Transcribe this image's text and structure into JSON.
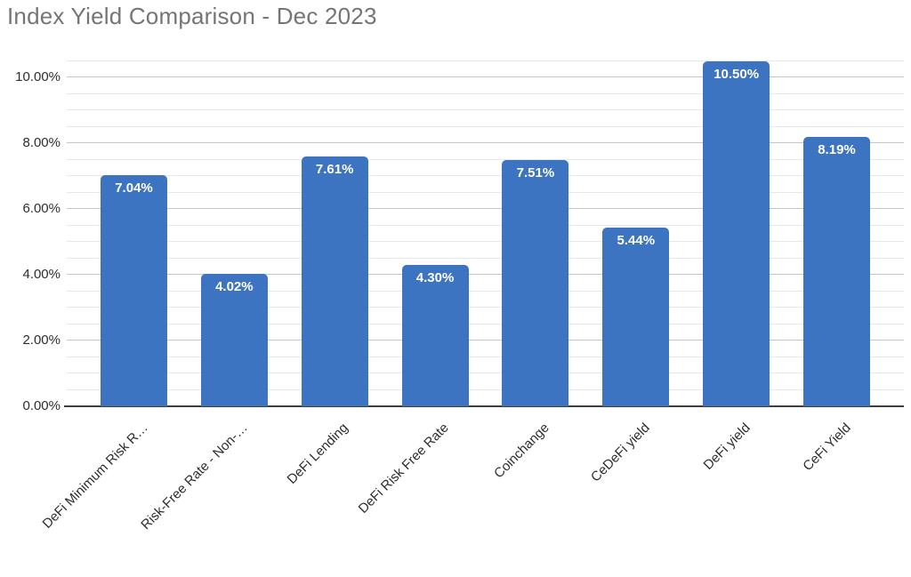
{
  "title": "Index Yield Comparison - Dec 2023",
  "chart_data": {
    "type": "bar",
    "title": "Index Yield Comparison - Dec 2023",
    "xlabel": "",
    "ylabel": "",
    "categories": [
      "DeFi Minimum Risk R…",
      "Risk-Free Rate - Non-…",
      "DeFi Lending",
      "DeFi Risk Free Rate",
      "Coinchange",
      "CeDeFi yield",
      "DeFi yield",
      "CeFi Yield"
    ],
    "values": [
      7.04,
      4.02,
      7.61,
      4.3,
      7.51,
      5.44,
      10.5,
      8.19
    ],
    "value_labels": [
      "7.04%",
      "4.02%",
      "7.61%",
      "4.30%",
      "7.51%",
      "5.44%",
      "10.50%",
      "8.19%"
    ],
    "ylim": [
      0,
      10.5
    ],
    "y_major_step": 2,
    "y_minor_step": 0.5,
    "y_tick_labels": [
      "0.00%",
      "2.00%",
      "4.00%",
      "6.00%",
      "8.00%",
      "10.00%"
    ],
    "grid": true,
    "legend": false,
    "colors": {
      "bar": "#3d74c1",
      "value_label": "#ffffff",
      "title": "#757575",
      "tick_label": "#2d2d2d",
      "axis_line": "#3f3f3f",
      "major_grid": "#c6c6c6",
      "minor_grid": "#e8e8e8",
      "background": "#ffffff"
    }
  }
}
